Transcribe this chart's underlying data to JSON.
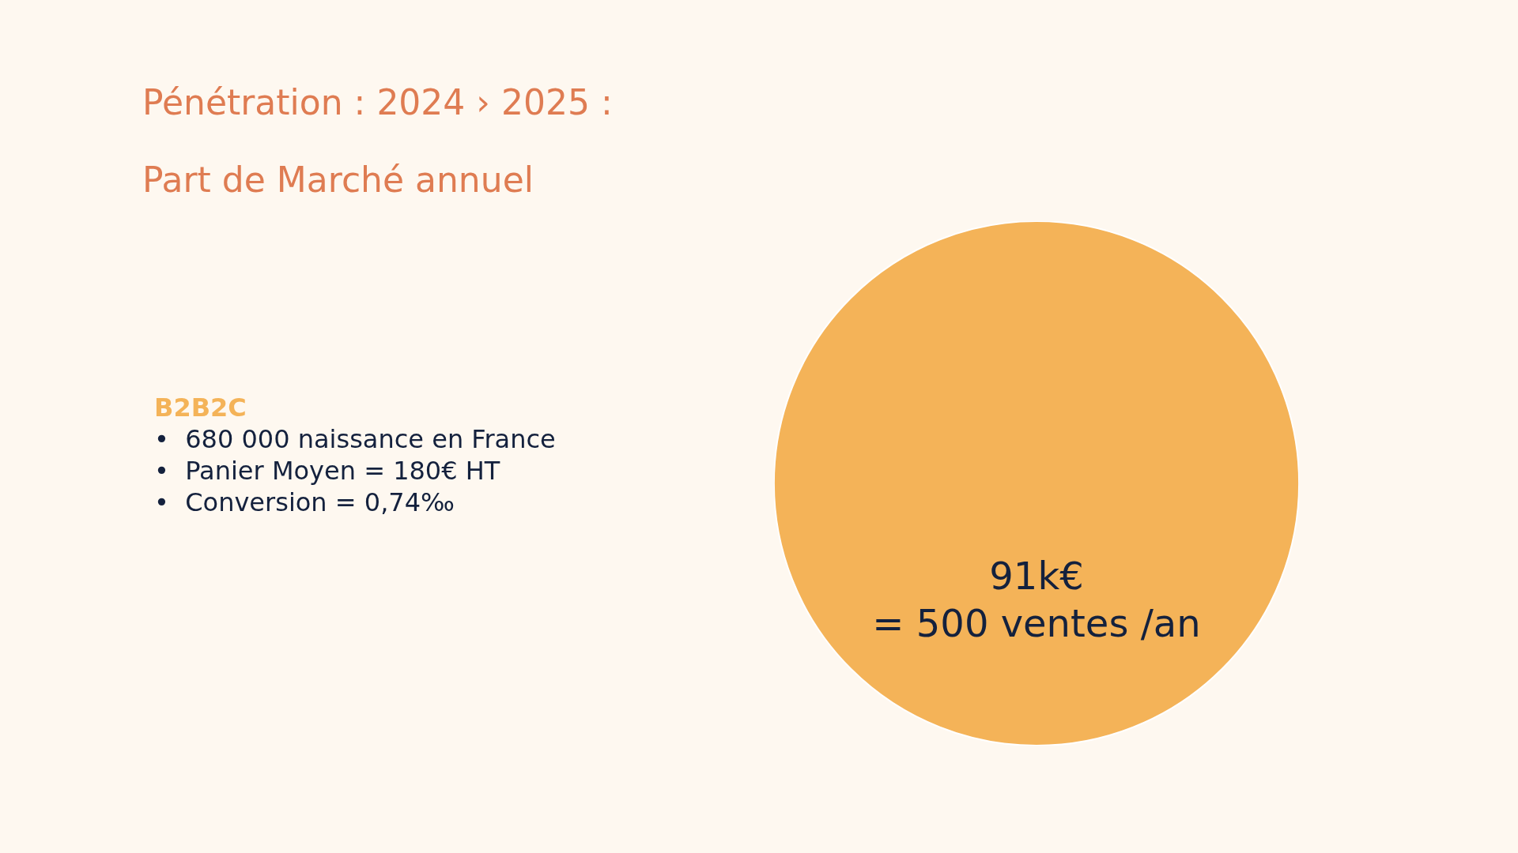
{
  "chart_data": {
    "type": "pie",
    "title": "Pénétration : 2024 › 2025 :",
    "subtitle": "Part de Marché annuel",
    "categories": [
      null
    ],
    "values": [
      100
    ],
    "colors": [
      "#f4b358"
    ],
    "annotations": [
      "B2B2C",
      "•  680 000 naissance en France",
      "•  Panier Moyen = 180€ HT",
      "•  Conversion = 0,74‰",
      "91k€\n= 500 ventes /an"
    ]
  }
}
